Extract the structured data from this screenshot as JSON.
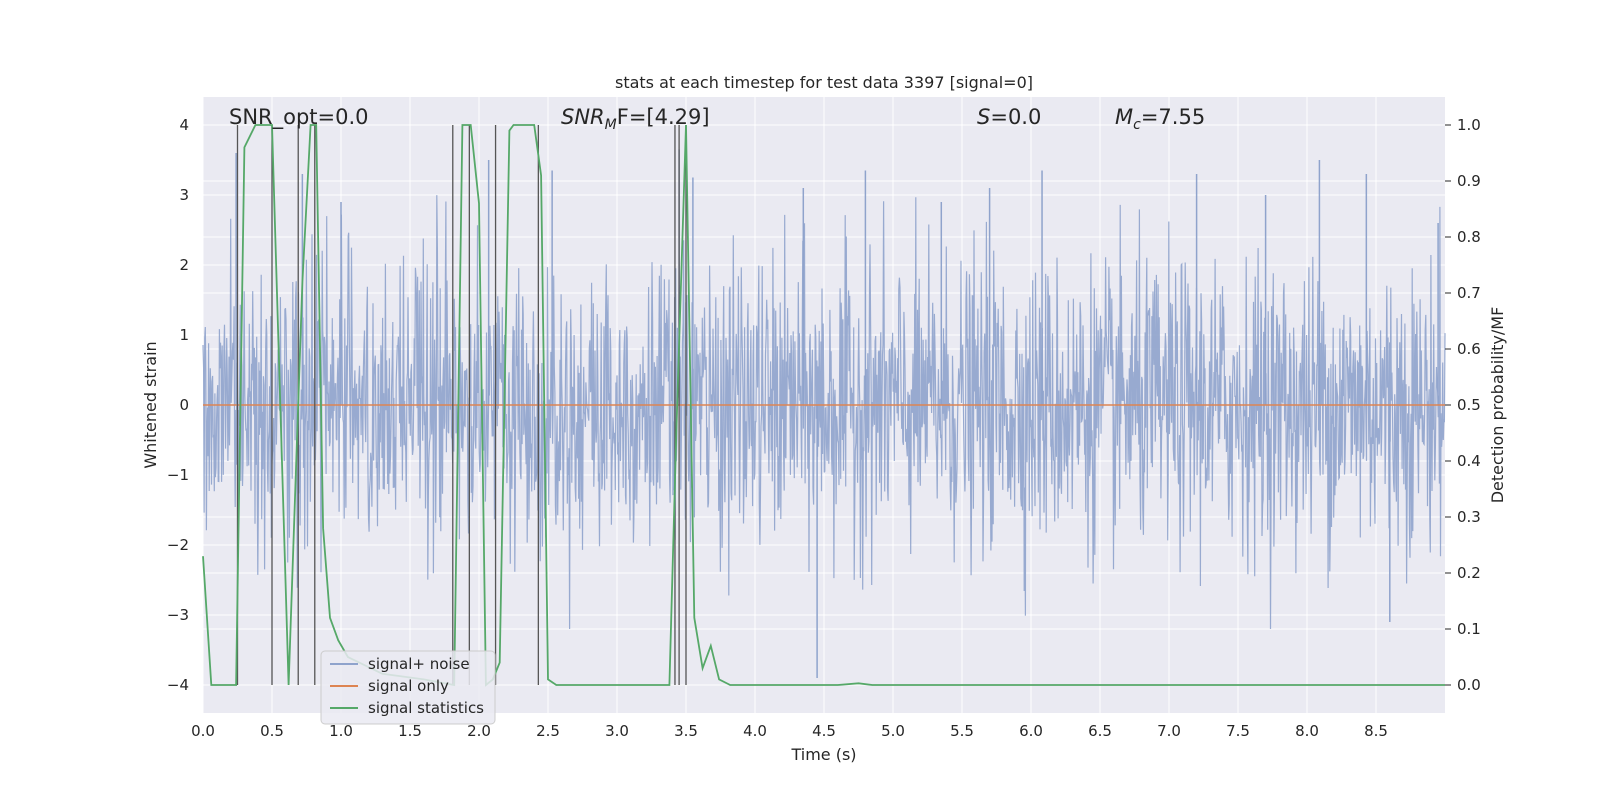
{
  "chart_data": {
    "type": "line",
    "title": "stats at each timestep for test data 3397 [signal=0]",
    "xlabel": "Time (s)",
    "ylabel_left": "Whitened strain",
    "ylabel_right": "Detection probability/MF",
    "xlim": [
      0,
      9.0
    ],
    "ylim_left": [
      -4.4,
      4.4
    ],
    "ylim_right": [
      -0.05,
      1.05
    ],
    "x_ticks": [
      "0.0",
      "0.5",
      "1.0",
      "1.5",
      "2.0",
      "2.5",
      "3.0",
      "3.5",
      "4.0",
      "4.5",
      "5.0",
      "5.5",
      "6.0",
      "6.5",
      "7.0",
      "7.5",
      "8.0",
      "8.5"
    ],
    "y_ticks_left": [
      "−4",
      "−3",
      "−2",
      "−1",
      "0",
      "1",
      "2",
      "3",
      "4"
    ],
    "y_ticks_right": [
      "0.0",
      "0.1",
      "0.2",
      "0.3",
      "0.4",
      "0.5",
      "0.6",
      "0.7",
      "0.8",
      "0.9",
      "1.0"
    ],
    "grid": true,
    "legend_position": "lower-left",
    "annotations": {
      "snr_opt": "SNR_opt=0.0",
      "snr_mf_name": "SNR",
      "snr_mf_sub": "M",
      "snr_mf_tail": "F=[4.29]",
      "s_name": "S",
      "s_tail": "=0.0",
      "mc_name": "M",
      "mc_sub": "c",
      "mc_tail": "=7.55"
    },
    "series": [
      {
        "name": "signal+ noise",
        "color": "#8fa3cc",
        "description_values": "whitened noise, approx. Gaussian, range -3.9 to 3.6",
        "peak_samples": [
          [
            0.24,
            3.6
          ],
          [
            0.72,
            3.3
          ],
          [
            1.0,
            2.9
          ],
          [
            2.07,
            3.5
          ],
          [
            2.53,
            3.35
          ],
          [
            3.45,
            3.65
          ],
          [
            3.55,
            3.25
          ],
          [
            4.35,
            3.1
          ],
          [
            4.45,
            -3.9
          ],
          [
            4.8,
            3.35
          ],
          [
            5.35,
            2.9
          ],
          [
            5.7,
            3.1
          ],
          [
            6.08,
            3.35
          ],
          [
            7.2,
            3.3
          ],
          [
            7.7,
            3.0
          ],
          [
            8.09,
            3.5
          ],
          [
            8.43,
            3.3
          ],
          [
            8.6,
            -3.1
          ],
          [
            8.95,
            2.6
          ]
        ]
      },
      {
        "name": "signal only",
        "color": "#dd8452",
        "values": "constant 0"
      },
      {
        "name": "signal statistics",
        "color": "#55a868",
        "points": [
          [
            0.0,
            0.23
          ],
          [
            0.06,
            0.0
          ],
          [
            0.13,
            0.0
          ],
          [
            0.24,
            0.0
          ],
          [
            0.3,
            0.96
          ],
          [
            0.38,
            1.0
          ],
          [
            0.5,
            1.0
          ],
          [
            0.62,
            0.0
          ],
          [
            0.72,
            0.72
          ],
          [
            0.78,
            1.0
          ],
          [
            0.82,
            1.0
          ],
          [
            0.87,
            0.28
          ],
          [
            0.92,
            0.12
          ],
          [
            0.98,
            0.08
          ],
          [
            1.05,
            0.05
          ],
          [
            1.3,
            0.02
          ],
          [
            1.6,
            0.01
          ],
          [
            1.82,
            0.0
          ],
          [
            1.88,
            1.0
          ],
          [
            1.94,
            1.0
          ],
          [
            2.0,
            0.86
          ],
          [
            2.05,
            0.0
          ],
          [
            2.1,
            0.01
          ],
          [
            2.15,
            0.04
          ],
          [
            2.22,
            0.99
          ],
          [
            2.25,
            1.0
          ],
          [
            2.4,
            1.0
          ],
          [
            2.45,
            0.91
          ],
          [
            2.5,
            0.01
          ],
          [
            2.56,
            0.0
          ],
          [
            3.0,
            0.0
          ],
          [
            3.38,
            0.0
          ],
          [
            3.43,
            0.45
          ],
          [
            3.5,
            1.0
          ],
          [
            3.56,
            0.12
          ],
          [
            3.62,
            0.03
          ],
          [
            3.68,
            0.07
          ],
          [
            3.74,
            0.01
          ],
          [
            3.82,
            0.0
          ],
          [
            4.0,
            0.0
          ],
          [
            4.6,
            0.0
          ],
          [
            4.75,
            0.003
          ],
          [
            4.85,
            0.0
          ],
          [
            9.0,
            0.0
          ]
        ]
      }
    ],
    "detection_marker_times": [
      0.25,
      0.5,
      0.69,
      0.81,
      1.81,
      1.93,
      2.12,
      2.43,
      3.42,
      3.45,
      3.5
    ]
  },
  "legend": {
    "items": [
      "signal+ noise",
      "signal only",
      "signal statistics"
    ]
  }
}
